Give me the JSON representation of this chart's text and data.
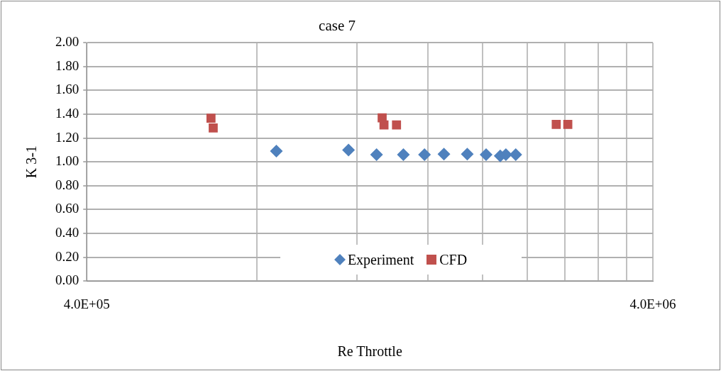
{
  "chart_data": {
    "type": "scatter",
    "title": "case 7",
    "xlabel": "Re Throttle",
    "ylabel": "K 3-1",
    "log": "x",
    "xlim": [
      400000,
      4000000
    ],
    "xticks": [
      {
        "value": 400000,
        "label": "4.0E+05"
      },
      {
        "value": 800000,
        "label": null
      },
      {
        "value": 1200000,
        "label": null
      },
      {
        "value": 1600000,
        "label": null
      },
      {
        "value": 2000000,
        "label": null
      },
      {
        "value": 2400000,
        "label": null
      },
      {
        "value": 2800000,
        "label": null
      },
      {
        "value": 3200000,
        "label": null
      },
      {
        "value": 3600000,
        "label": null
      },
      {
        "value": 4000000,
        "label": "4.0E+06"
      }
    ],
    "ylim": [
      0,
      2
    ],
    "yticks": [
      {
        "value": 0,
        "label": "0.00"
      },
      {
        "value": 0.2,
        "label": "0.20"
      },
      {
        "value": 0.4,
        "label": "0.40"
      },
      {
        "value": 0.6,
        "label": "0.60"
      },
      {
        "value": 0.8,
        "label": "0.80"
      },
      {
        "value": 1,
        "label": "1.00"
      },
      {
        "value": 1.2,
        "label": "1.20"
      },
      {
        "value": 1.4,
        "label": "1.40"
      },
      {
        "value": 1.6,
        "label": "1.60"
      },
      {
        "value": 1.8,
        "label": "1.80"
      },
      {
        "value": 2,
        "label": "2.00"
      }
    ],
    "grid": true,
    "legend": "bottom",
    "series": [
      {
        "name": "Experiment",
        "color": "#4f81bd",
        "marker": "diamond",
        "x": [
          865000,
          1160000,
          1300000,
          1450000,
          1580000,
          1710000,
          1880000,
          2030000,
          2150000,
          2200000,
          2290000
        ],
        "values": [
          1.09,
          1.1,
          1.06,
          1.06,
          1.06,
          1.065,
          1.065,
          1.06,
          1.05,
          1.06,
          1.06
        ]
      },
      {
        "name": "CFD",
        "color": "#c0504d",
        "marker": "square",
        "x": [
          663000,
          669000,
          1330000,
          1340000,
          1410000,
          2700000,
          2830000
        ],
        "values": [
          1.366,
          1.285,
          1.37,
          1.31,
          1.31,
          1.315,
          1.315
        ]
      }
    ]
  }
}
